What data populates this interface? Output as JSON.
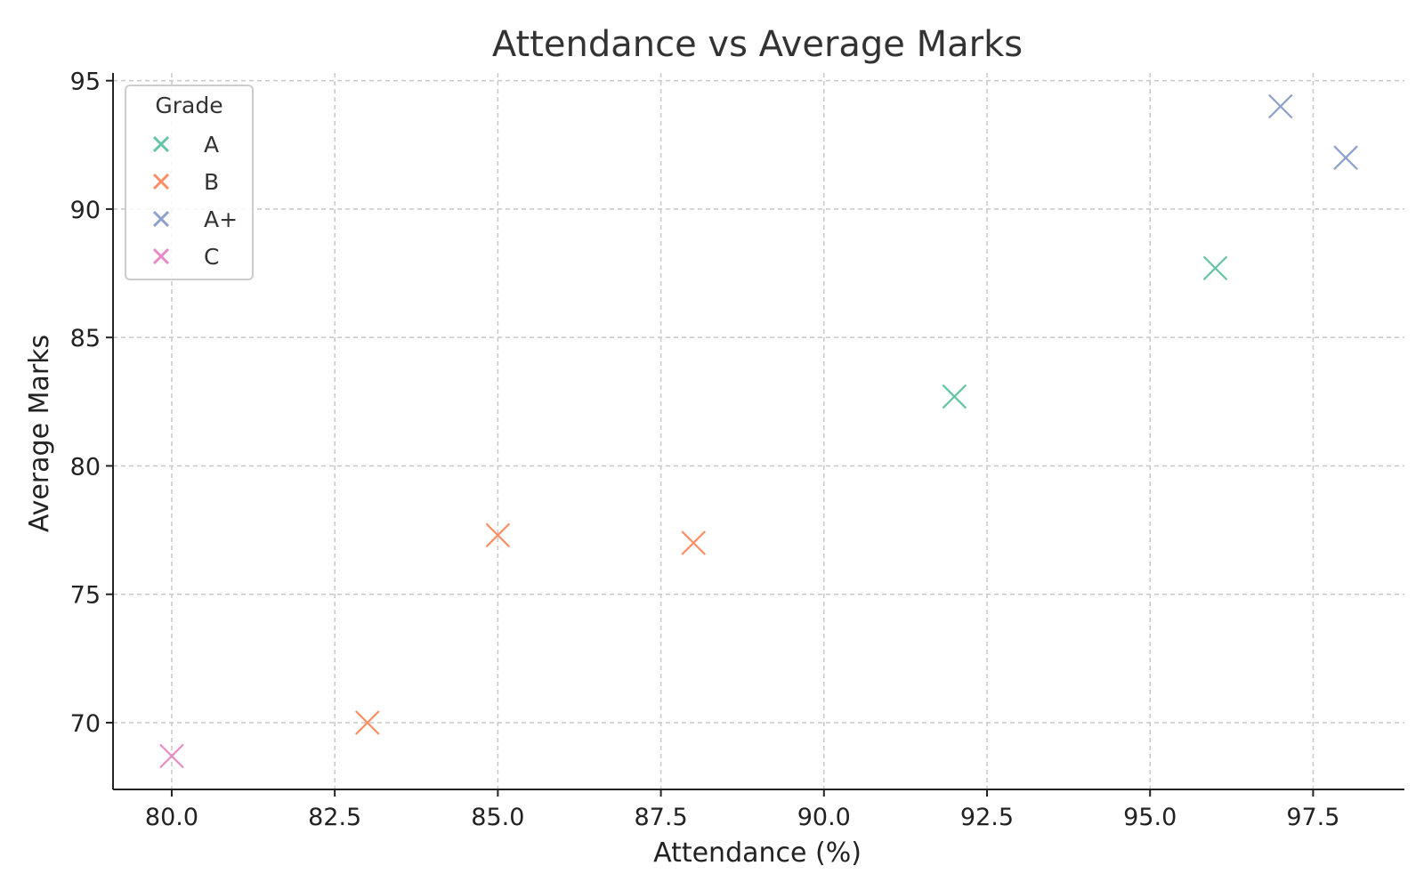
{
  "chart_data": {
    "type": "scatter",
    "title": "Attendance vs Average Marks",
    "xlabel": "Attendance (%)",
    "ylabel": "Average Marks",
    "xlim": [
      79.1,
      98.9
    ],
    "ylim": [
      67.4,
      95.3
    ],
    "xticks": [
      "80.0",
      "82.5",
      "85.0",
      "87.5",
      "90.0",
      "92.5",
      "95.0",
      "97.5"
    ],
    "yticks": [
      "70",
      "75",
      "80",
      "85",
      "90",
      "95"
    ],
    "grid": true,
    "marker": "x",
    "legend": {
      "title": "Grade",
      "placement": "top-left"
    },
    "series": [
      {
        "name": "A",
        "color": "#66c2a5",
        "points": [
          [
            92,
            82.7
          ],
          [
            96,
            87.7
          ]
        ]
      },
      {
        "name": "B",
        "color": "#fc8d62",
        "points": [
          [
            83,
            70.0
          ],
          [
            85,
            77.3
          ],
          [
            88,
            77.0
          ]
        ]
      },
      {
        "name": "A+",
        "color": "#8da0cb",
        "points": [
          [
            97,
            94.0
          ],
          [
            98,
            92.0
          ]
        ]
      },
      {
        "name": "C",
        "color": "#e78ac3",
        "points": [
          [
            80,
            68.7
          ]
        ]
      }
    ]
  }
}
